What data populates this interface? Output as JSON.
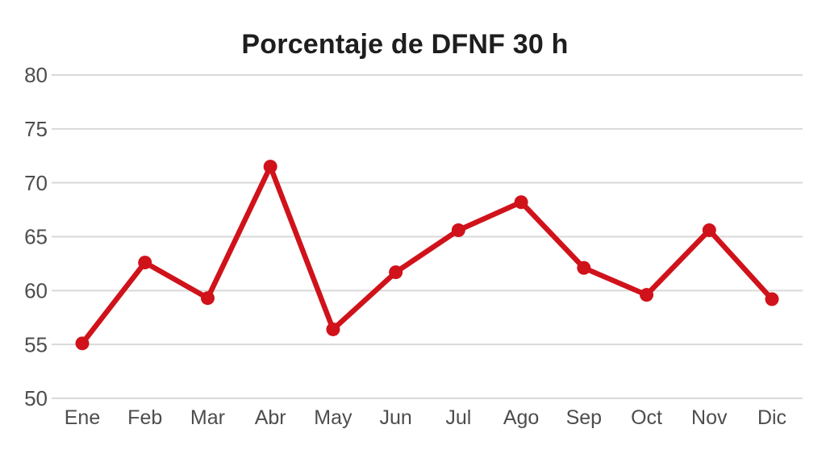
{
  "chart_data": {
    "type": "line",
    "title": "Porcentaje de DFNF 30 h",
    "categories": [
      "Ene",
      "Feb",
      "Mar",
      "Abr",
      "May",
      "Jun",
      "Jul",
      "Ago",
      "Sep",
      "Oct",
      "Nov",
      "Dic"
    ],
    "values": [
      55.1,
      62.6,
      59.3,
      71.5,
      56.4,
      61.7,
      65.6,
      68.2,
      62.1,
      59.6,
      65.6,
      59.2
    ],
    "xlabel": "",
    "ylabel": "",
    "ylim": [
      50,
      80
    ],
    "yticks": [
      50,
      55,
      60,
      65,
      70,
      75,
      80
    ],
    "grid": "horizontal-only",
    "legend": "none",
    "colors": {
      "line": "#d0121b",
      "marker": "#d0121b",
      "gridline": "#d9d9d9",
      "axis_label": "#4d4d4d",
      "title": "#1e1e1e",
      "background": "#ffffff"
    }
  }
}
